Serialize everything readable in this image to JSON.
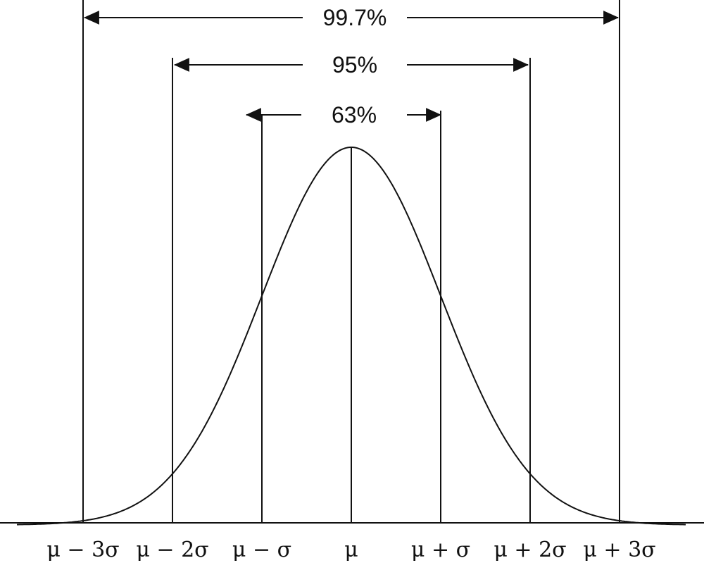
{
  "chart_data": {
    "type": "line",
    "description": "",
    "x": [
      -3.5,
      -3,
      -2.5,
      -2,
      -1.5,
      -1,
      -0.5,
      0,
      0.5,
      1,
      1.5,
      2,
      2.5,
      3,
      3.5
    ],
    "xlim": [
      -3.5,
      3.5
    ],
    "tick_positions": [
      -3,
      -2,
      -1,
      0,
      1,
      2,
      3
    ],
    "tick_labels": [
      "μ − 3σ",
      "μ − 2σ",
      "μ − σ",
      "μ",
      "μ + σ",
      "μ + 2σ",
      "μ + 3σ"
    ],
    "ranges": [
      {
        "label": "99.7%",
        "from": -3,
        "to": 3
      },
      {
        "label": "95%",
        "from": -2,
        "to": 2
      },
      {
        "label": "63%",
        "from": -1,
        "to": 1
      }
    ],
    "grid": false,
    "legend": "none",
    "title": "",
    "xlabel": "",
    "ylabel": ""
  },
  "colors": {
    "ink": "#111111",
    "background": "#ffffff"
  }
}
